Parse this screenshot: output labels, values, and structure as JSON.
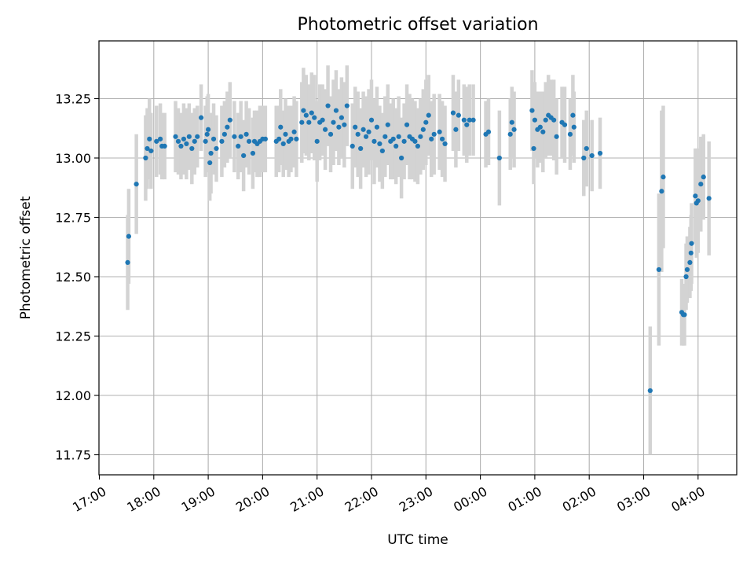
{
  "chart_data": {
    "type": "scatter",
    "title": "Photometric offset variation",
    "xlabel": "UTC time",
    "ylabel": "Photometric offset",
    "x_unit": "hours since 17:00 UTC",
    "xlim": [
      0,
      11.8
    ],
    "ylim": [
      11.68,
      13.48
    ],
    "grid": true,
    "x_ticks": [
      {
        "value": 0,
        "label": "17:00"
      },
      {
        "value": 1,
        "label": "18:00"
      },
      {
        "value": 2,
        "label": "19:00"
      },
      {
        "value": 3,
        "label": "20:00"
      },
      {
        "value": 4,
        "label": "21:00"
      },
      {
        "value": 5,
        "label": "22:00"
      },
      {
        "value": 6,
        "label": "23:00"
      },
      {
        "value": 7,
        "label": "00:00"
      },
      {
        "value": 8,
        "label": "01:00"
      },
      {
        "value": 9,
        "label": "02:00"
      },
      {
        "value": 10,
        "label": "03:00"
      },
      {
        "value": 11,
        "label": "04:00"
      }
    ],
    "y_ticks": [
      {
        "value": 11.75,
        "label": "11.75"
      },
      {
        "value": 12.0,
        "label": "12.00"
      },
      {
        "value": 12.25,
        "label": "12.25"
      },
      {
        "value": 12.5,
        "label": "12.50"
      },
      {
        "value": 12.75,
        "label": "12.75"
      },
      {
        "value": 13.0,
        "label": "13.00"
      },
      {
        "value": 13.25,
        "label": "13.25"
      }
    ],
    "colors": {
      "points": "#1f77b4",
      "errorbars": "#d3d3d3",
      "grid": "#b0b0b0",
      "axes": "#000000"
    },
    "series": [
      {
        "name": "Photometric offset",
        "points": [
          [
            0.52,
            12.56,
            0.2
          ],
          [
            0.54,
            12.67,
            0.2
          ],
          [
            0.68,
            12.89,
            0.21
          ],
          [
            0.85,
            13.0,
            0.18
          ],
          [
            0.88,
            13.04,
            0.17
          ],
          [
            0.92,
            13.08,
            0.17
          ],
          [
            0.95,
            13.03,
            0.16
          ],
          [
            1.05,
            13.07,
            0.15
          ],
          [
            1.12,
            13.08,
            0.15
          ],
          [
            1.15,
            13.05,
            0.14
          ],
          [
            1.2,
            13.05,
            0.14
          ],
          [
            1.4,
            13.09,
            0.15
          ],
          [
            1.45,
            13.07,
            0.14
          ],
          [
            1.5,
            13.05,
            0.14
          ],
          [
            1.55,
            13.08,
            0.15
          ],
          [
            1.6,
            13.06,
            0.15
          ],
          [
            1.65,
            13.09,
            0.14
          ],
          [
            1.7,
            13.04,
            0.15
          ],
          [
            1.75,
            13.07,
            0.14
          ],
          [
            1.8,
            13.09,
            0.13
          ],
          [
            1.87,
            13.17,
            0.14
          ],
          [
            1.95,
            13.07,
            0.15
          ],
          [
            1.98,
            13.1,
            0.16
          ],
          [
            2.0,
            13.12,
            0.15
          ],
          [
            2.03,
            12.98,
            0.16
          ],
          [
            2.05,
            13.02,
            0.17
          ],
          [
            2.1,
            13.08,
            0.15
          ],
          [
            2.15,
            13.04,
            0.14
          ],
          [
            2.25,
            13.07,
            0.15
          ],
          [
            2.3,
            13.1,
            0.14
          ],
          [
            2.35,
            13.13,
            0.15
          ],
          [
            2.4,
            13.16,
            0.16
          ],
          [
            2.48,
            13.09,
            0.15
          ],
          [
            2.55,
            13.05,
            0.14
          ],
          [
            2.6,
            13.09,
            0.15
          ],
          [
            2.65,
            13.01,
            0.15
          ],
          [
            2.7,
            13.1,
            0.14
          ],
          [
            2.75,
            13.07,
            0.14
          ],
          [
            2.82,
            13.02,
            0.15
          ],
          [
            2.85,
            13.07,
            0.13
          ],
          [
            2.9,
            13.06,
            0.14
          ],
          [
            2.95,
            13.07,
            0.15
          ],
          [
            3.0,
            13.08,
            0.14
          ],
          [
            3.05,
            13.08,
            0.14
          ],
          [
            3.25,
            13.07,
            0.15
          ],
          [
            3.3,
            13.08,
            0.14
          ],
          [
            3.33,
            13.13,
            0.16
          ],
          [
            3.38,
            13.06,
            0.14
          ],
          [
            3.42,
            13.1,
            0.15
          ],
          [
            3.48,
            13.07,
            0.15
          ],
          [
            3.52,
            13.08,
            0.14
          ],
          [
            3.58,
            13.11,
            0.15
          ],
          [
            3.62,
            13.08,
            0.16
          ],
          [
            3.72,
            13.15,
            0.17
          ],
          [
            3.75,
            13.2,
            0.18
          ],
          [
            3.8,
            13.18,
            0.17
          ],
          [
            3.85,
            13.15,
            0.16
          ],
          [
            3.9,
            13.19,
            0.17
          ],
          [
            3.95,
            13.17,
            0.18
          ],
          [
            4.0,
            13.07,
            0.17
          ],
          [
            4.05,
            13.15,
            0.16
          ],
          [
            4.1,
            13.16,
            0.15
          ],
          [
            4.15,
            13.12,
            0.17
          ],
          [
            4.2,
            13.22,
            0.17
          ],
          [
            4.25,
            13.1,
            0.16
          ],
          [
            4.3,
            13.15,
            0.18
          ],
          [
            4.35,
            13.2,
            0.17
          ],
          [
            4.4,
            13.13,
            0.16
          ],
          [
            4.45,
            13.17,
            0.17
          ],
          [
            4.5,
            13.14,
            0.18
          ],
          [
            4.55,
            13.22,
            0.17
          ],
          [
            4.65,
            13.05,
            0.18
          ],
          [
            4.7,
            13.13,
            0.17
          ],
          [
            4.75,
            13.1,
            0.18
          ],
          [
            4.8,
            13.04,
            0.17
          ],
          [
            4.85,
            13.12,
            0.16
          ],
          [
            4.9,
            13.09,
            0.17
          ],
          [
            4.95,
            13.11,
            0.18
          ],
          [
            5.0,
            13.16,
            0.17
          ],
          [
            5.05,
            13.07,
            0.18
          ],
          [
            5.1,
            13.13,
            0.17
          ],
          [
            5.15,
            13.06,
            0.16
          ],
          [
            5.2,
            13.03,
            0.16
          ],
          [
            5.25,
            13.09,
            0.17
          ],
          [
            5.3,
            13.14,
            0.17
          ],
          [
            5.35,
            13.07,
            0.16
          ],
          [
            5.4,
            13.08,
            0.17
          ],
          [
            5.45,
            13.05,
            0.16
          ],
          [
            5.5,
            13.09,
            0.17
          ],
          [
            5.55,
            13.0,
            0.17
          ],
          [
            5.6,
            13.07,
            0.16
          ],
          [
            5.65,
            13.14,
            0.17
          ],
          [
            5.7,
            13.09,
            0.18
          ],
          [
            5.75,
            13.08,
            0.17
          ],
          [
            5.8,
            13.07,
            0.17
          ],
          [
            5.85,
            13.05,
            0.16
          ],
          [
            5.9,
            13.09,
            0.16
          ],
          [
            5.95,
            13.12,
            0.17
          ],
          [
            6.0,
            13.15,
            0.18
          ],
          [
            6.05,
            13.18,
            0.17
          ],
          [
            6.1,
            13.08,
            0.16
          ],
          [
            6.15,
            13.1,
            0.17
          ],
          [
            6.25,
            13.11,
            0.16
          ],
          [
            6.3,
            13.08,
            0.16
          ],
          [
            6.35,
            13.06,
            0.16
          ],
          [
            6.5,
            13.19,
            0.16
          ],
          [
            6.55,
            13.12,
            0.16
          ],
          [
            6.6,
            13.18,
            0.15
          ],
          [
            6.7,
            13.16,
            0.15
          ],
          [
            6.75,
            13.14,
            0.16
          ],
          [
            6.8,
            13.16,
            0.15
          ],
          [
            6.87,
            13.16,
            0.15
          ],
          [
            7.1,
            13.1,
            0.14
          ],
          [
            7.15,
            13.11,
            0.14
          ],
          [
            7.35,
            13.0,
            0.2
          ],
          [
            7.55,
            13.1,
            0.15
          ],
          [
            7.58,
            13.15,
            0.15
          ],
          [
            7.62,
            13.12,
            0.16
          ],
          [
            7.95,
            13.2,
            0.17
          ],
          [
            7.98,
            13.04,
            0.15
          ],
          [
            8.0,
            13.16,
            0.16
          ],
          [
            8.05,
            13.12,
            0.16
          ],
          [
            8.1,
            13.13,
            0.15
          ],
          [
            8.15,
            13.11,
            0.17
          ],
          [
            8.2,
            13.16,
            0.16
          ],
          [
            8.25,
            13.18,
            0.17
          ],
          [
            8.3,
            13.17,
            0.16
          ],
          [
            8.35,
            13.16,
            0.17
          ],
          [
            8.4,
            13.09,
            0.16
          ],
          [
            8.5,
            13.15,
            0.15
          ],
          [
            8.55,
            13.14,
            0.16
          ],
          [
            8.65,
            13.1,
            0.15
          ],
          [
            8.7,
            13.18,
            0.17
          ],
          [
            8.72,
            13.13,
            0.15
          ],
          [
            8.9,
            13.0,
            0.16
          ],
          [
            8.95,
            13.04,
            0.16
          ],
          [
            9.05,
            13.01,
            0.15
          ],
          [
            9.2,
            13.02,
            0.15
          ],
          [
            10.12,
            12.02,
            0.27
          ],
          [
            10.28,
            12.53,
            0.32
          ],
          [
            10.33,
            12.86,
            0.34
          ],
          [
            10.36,
            12.92,
            0.3
          ],
          [
            10.7,
            12.35,
            0.14
          ],
          [
            10.73,
            12.34,
            0.13
          ],
          [
            10.75,
            12.34,
            0.13
          ],
          [
            10.78,
            12.5,
            0.14
          ],
          [
            10.8,
            12.53,
            0.14
          ],
          [
            10.85,
            12.56,
            0.15
          ],
          [
            10.87,
            12.6,
            0.16
          ],
          [
            10.88,
            12.64,
            0.17
          ],
          [
            10.95,
            12.84,
            0.2
          ],
          [
            10.97,
            12.81,
            0.23
          ],
          [
            11.0,
            12.82,
            0.22
          ],
          [
            11.05,
            12.89,
            0.2
          ],
          [
            11.1,
            12.92,
            0.18
          ],
          [
            11.2,
            12.83,
            0.24
          ]
        ]
      }
    ]
  }
}
